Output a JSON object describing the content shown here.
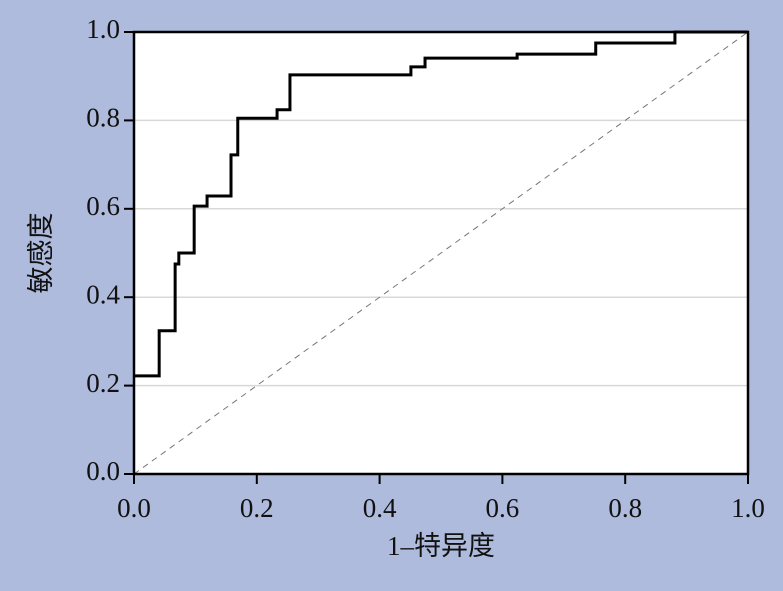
{
  "chart_data": {
    "type": "line",
    "x_label": "1–特异度",
    "y_label": "敏感度",
    "series": [
      {
        "color": "#000000",
        "x": [
          0,
          0.041,
          0.041,
          0.067,
          0.067,
          0.073,
          0.073,
          0.098,
          0.098,
          0.119,
          0.119,
          0.158,
          0.158,
          0.169,
          0.169,
          0.233,
          0.233,
          0.254,
          0.254,
          0.451,
          0.451,
          0.474,
          0.474,
          0.624,
          0.624,
          0.752,
          0.752,
          0.881,
          0.881,
          1.0
        ],
        "values": [
          0.222,
          0.222,
          0.324,
          0.324,
          0.475,
          0.475,
          0.5,
          0.5,
          0.606,
          0.606,
          0.629,
          0.629,
          0.722,
          0.722,
          0.805,
          0.805,
          0.824,
          0.824,
          0.903,
          0.903,
          0.921,
          0.921,
          0.941,
          0.941,
          0.95,
          0.95,
          0.975,
          0.975,
          1.0,
          1.0
        ]
      }
    ],
    "xlim": [
      0,
      1
    ],
    "ylim": [
      0,
      1
    ],
    "xticks": [
      {
        "value": 0,
        "label": "0.0"
      },
      0.2,
      0.4,
      0.6,
      0.8,
      {
        "value": 1,
        "label": "1.0"
      }
    ],
    "yticks": [
      {
        "value": 0,
        "label": "0.0"
      },
      0.2,
      0.4,
      0.6,
      0.8,
      {
        "value": 1,
        "label": "1.0"
      }
    ],
    "grid": "y",
    "diagonal": true
  }
}
